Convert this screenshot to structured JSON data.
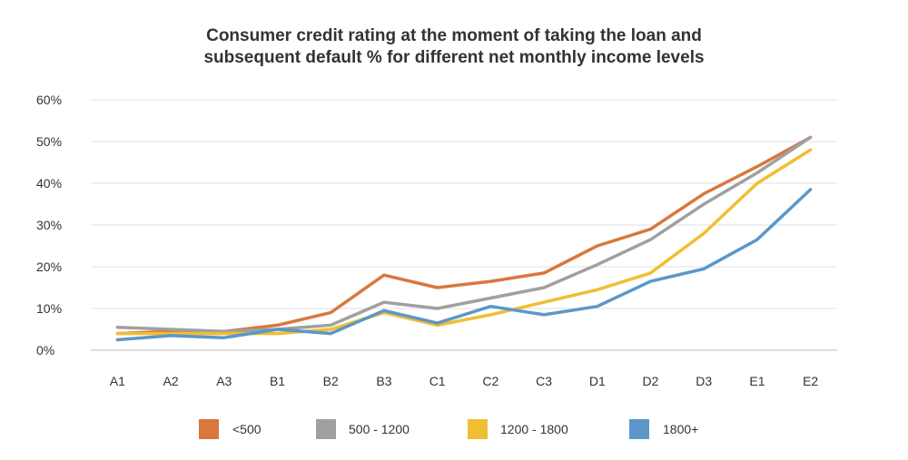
{
  "chart_data": {
    "type": "line",
    "title_line1": "Consumer credit rating at the moment of taking the loan and",
    "title_line2": "subsequent default % for different net monthly income levels",
    "categories": [
      "A1",
      "A2",
      "A3",
      "B1",
      "B2",
      "B3",
      "C1",
      "C2",
      "C3",
      "D1",
      "D2",
      "D3",
      "E1",
      "E2"
    ],
    "y_ticks": [
      "0%",
      "10%",
      "20%",
      "30%",
      "40%",
      "50%",
      "60%"
    ],
    "ylim": [
      0,
      60
    ],
    "grid": true,
    "legend_position": "bottom",
    "series": [
      {
        "name": "<500",
        "color": "#D9773E",
        "values": [
          4,
          4.5,
          4.5,
          6,
          9,
          18,
          15,
          16.5,
          18.5,
          25,
          29,
          37.5,
          44,
          51
        ]
      },
      {
        "name": "500 - 1200",
        "color": "#A0A0A0",
        "values": [
          5.5,
          5,
          4.5,
          5,
          6,
          11.5,
          10,
          12.5,
          15,
          20.5,
          26.5,
          35,
          42.5,
          51
        ]
      },
      {
        "name": "1200 - 1800",
        "color": "#F0BE32",
        "values": [
          4,
          4,
          4,
          4,
          5,
          9,
          6,
          8.5,
          11.5,
          14.5,
          18.5,
          28,
          40,
          48
        ]
      },
      {
        "name": "1800+",
        "color": "#5B97C9",
        "values": [
          2.5,
          3.5,
          3,
          5,
          4,
          9.5,
          6.5,
          10.5,
          8.5,
          10.5,
          16.5,
          19.5,
          26.5,
          38.5
        ]
      }
    ]
  }
}
